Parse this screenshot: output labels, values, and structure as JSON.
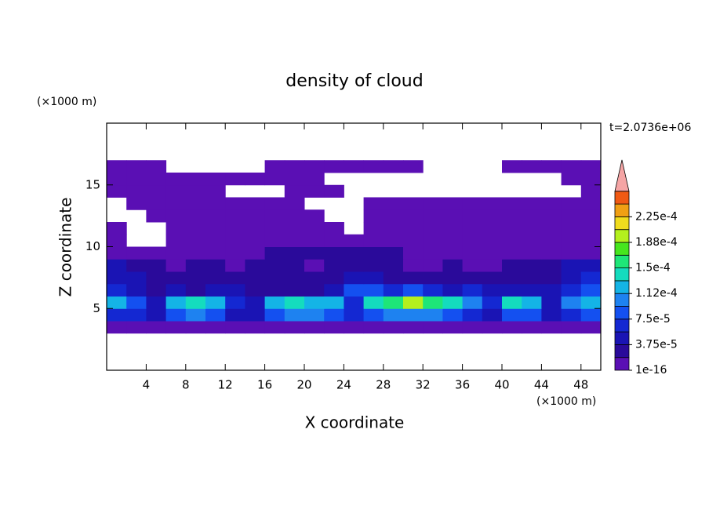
{
  "chart_data": {
    "type": "contour",
    "title": "density of cloud",
    "xlabel": "X coordinate",
    "ylabel": "Z coordinate",
    "xunit": "(×1000 m)",
    "yunit": "(×1000 m)",
    "annotation": "t=2.0736e+06",
    "xlim": [
      0,
      50
    ],
    "ylim": [
      0,
      20
    ],
    "xticks": [
      4,
      8,
      12,
      16,
      20,
      24,
      28,
      32,
      36,
      40,
      44,
      48
    ],
    "yticks": [
      5,
      10,
      15
    ],
    "x": [
      1,
      3,
      5,
      7,
      9,
      11,
      13,
      15,
      17,
      19,
      21,
      23,
      25,
      27,
      29,
      31,
      33,
      35,
      37,
      39,
      41,
      43,
      45,
      47,
      49
    ],
    "y": [
      3.5,
      4.5,
      5.5,
      6.5,
      7.5,
      8.5,
      9.5,
      10.5,
      11.5,
      12.5,
      13.5,
      14.5,
      15.5,
      16.5
    ],
    "z": [
      [
        1e-05,
        1e-05,
        1e-05,
        1e-05,
        1e-05,
        1e-05,
        1e-05,
        1e-05,
        1e-05,
        1e-05,
        1e-05,
        1e-05,
        1e-05,
        1e-05,
        1e-05,
        1e-05,
        1e-05,
        1e-05,
        1e-05,
        1e-05,
        1e-05,
        1e-05,
        1e-05,
        1e-05,
        1e-05
      ],
      [
        6e-05,
        6e-05,
        4e-05,
        9e-05,
        0.0001,
        9e-05,
        5e-05,
        4e-05,
        9e-05,
        0.0001,
        0.0001,
        9e-05,
        6e-05,
        9e-05,
        0.0001,
        0.00011,
        0.0001,
        9e-05,
        6e-05,
        4e-05,
        9e-05,
        8e-05,
        4e-05,
        6e-05,
        8e-05
      ],
      [
        0.00012,
        8e-05,
        4e-05,
        0.00013,
        0.00014,
        0.00012,
        6e-05,
        4e-05,
        0.00013,
        0.00014,
        0.00013,
        0.00012,
        7e-05,
        0.00014,
        0.00015,
        0.00019,
        0.00016,
        0.00014,
        0.0001,
        6e-05,
        0.00014,
        0.00012,
        5e-05,
        0.0001,
        0.00012
      ],
      [
        6e-05,
        4e-05,
        3e-05,
        4e-05,
        3e-05,
        4e-05,
        5e-05,
        3e-05,
        3e-05,
        3e-05,
        3e-05,
        5e-05,
        8e-05,
        9e-05,
        7e-05,
        8e-05,
        6e-05,
        5e-05,
        7e-05,
        5e-05,
        4e-05,
        4e-05,
        5e-05,
        7e-05,
        8e-05
      ],
      [
        5e-05,
        4e-05,
        3e-05,
        3e-05,
        3e-05,
        3e-05,
        3e-05,
        3e-05,
        3e-05,
        3e-05,
        3e-05,
        3e-05,
        4e-05,
        4e-05,
        3e-05,
        3e-05,
        3e-05,
        3e-05,
        3e-05,
        3e-05,
        3e-05,
        3e-05,
        3e-05,
        4e-05,
        6e-05
      ],
      [
        5e-05,
        3e-05,
        2e-05,
        1e-05,
        2e-05,
        2e-05,
        1e-05,
        2e-05,
        2e-05,
        2e-05,
        1e-05,
        2e-05,
        2e-05,
        2e-05,
        2e-05,
        1e-05,
        1e-05,
        2e-05,
        1e-05,
        1e-05,
        2e-05,
        2e-05,
        2e-05,
        4e-05,
        5e-05
      ],
      [
        1e-05,
        1e-05,
        1e-05,
        1e-05,
        1e-05,
        1e-05,
        1e-05,
        1e-05,
        2e-05,
        2e-05,
        2e-05,
        2e-05,
        2e-05,
        2e-05,
        2e-05,
        1e-05,
        1e-05,
        1e-05,
        1e-05,
        1e-05,
        1e-05,
        1e-05,
        1e-05,
        1e-05,
        1e-05
      ],
      [
        1e-05,
        null,
        null,
        1e-05,
        1e-05,
        1e-05,
        1e-05,
        1e-05,
        1e-05,
        1e-05,
        1e-05,
        1e-05,
        1e-05,
        1e-05,
        1e-05,
        1e-05,
        1e-05,
        1e-05,
        1e-05,
        1e-05,
        1e-05,
        1e-05,
        1e-05,
        1e-05,
        1e-05
      ],
      [
        1e-05,
        null,
        null,
        1e-05,
        1e-05,
        1e-05,
        1e-05,
        1e-05,
        1e-05,
        1e-05,
        1e-05,
        1e-05,
        null,
        1e-05,
        1e-05,
        1e-05,
        1e-05,
        1e-05,
        1e-05,
        1e-05,
        1e-05,
        1e-05,
        1e-05,
        1e-05,
        1e-05
      ],
      [
        null,
        null,
        1e-05,
        1e-05,
        1e-05,
        1e-05,
        1e-05,
        1e-05,
        1e-05,
        1e-05,
        1e-05,
        null,
        null,
        1e-05,
        1e-05,
        1e-05,
        1e-05,
        1e-05,
        1e-05,
        1e-05,
        1e-05,
        1e-05,
        1e-05,
        1e-05,
        1e-05
      ],
      [
        null,
        1e-05,
        1e-05,
        1e-05,
        1e-05,
        1e-05,
        1e-05,
        1e-05,
        1e-05,
        1e-05,
        null,
        null,
        null,
        1e-05,
        1e-05,
        1e-05,
        1e-05,
        1e-05,
        1e-05,
        1e-05,
        1e-05,
        1e-05,
        1e-05,
        1e-05,
        1e-05
      ],
      [
        1e-05,
        1e-05,
        1e-05,
        1e-05,
        1e-05,
        1e-05,
        null,
        null,
        null,
        1e-05,
        1e-05,
        1e-05,
        null,
        null,
        null,
        null,
        null,
        null,
        null,
        null,
        null,
        null,
        null,
        null,
        1e-05
      ],
      [
        1e-05,
        1e-05,
        1e-05,
        1e-05,
        1e-05,
        1e-05,
        1e-05,
        1e-05,
        1e-05,
        1e-05,
        1e-05,
        null,
        null,
        null,
        null,
        null,
        null,
        null,
        null,
        null,
        null,
        null,
        null,
        1e-05,
        1e-05
      ],
      [
        1e-05,
        1e-05,
        1e-05,
        null,
        null,
        null,
        null,
        null,
        1e-05,
        1e-05,
        1e-05,
        1e-05,
        1e-05,
        1e-05,
        1e-05,
        1e-05,
        null,
        null,
        null,
        null,
        1e-05,
        1e-05,
        1e-05,
        1e-05,
        1e-05
      ]
    ],
    "levels": [
      1e-16,
      1.875e-05,
      3.75e-05,
      5.625e-05,
      7.5e-05,
      9.375e-05,
      0.0001125,
      0.00013125,
      0.00015,
      0.00016875,
      0.0001875,
      0.00020625,
      0.000225,
      0.00024375,
      0.0002625
    ],
    "colors": [
      "#5a0fb4",
      "#2a0a9a",
      "#1a14b4",
      "#1428d2",
      "#1450f0",
      "#1e82f0",
      "#14b4e6",
      "#14dcbe",
      "#1ee678",
      "#46e61e",
      "#b4f01e",
      "#f0dc1e",
      "#f0a014",
      "#f05a14"
    ],
    "over_color": "#f5a5a5",
    "colorbar_ticks": [
      {
        "value": 1e-16,
        "label": "1e-16"
      },
      {
        "value": 3.75e-05,
        "label": "3.75e-5"
      },
      {
        "value": 7.5e-05,
        "label": "7.5e-5"
      },
      {
        "value": 0.0001125,
        "label": "1.12e-4"
      },
      {
        "value": 0.00015,
        "label": "1.5e-4"
      },
      {
        "value": 0.0001875,
        "label": "1.88e-4"
      },
      {
        "value": 0.000225,
        "label": "2.25e-4"
      }
    ]
  }
}
